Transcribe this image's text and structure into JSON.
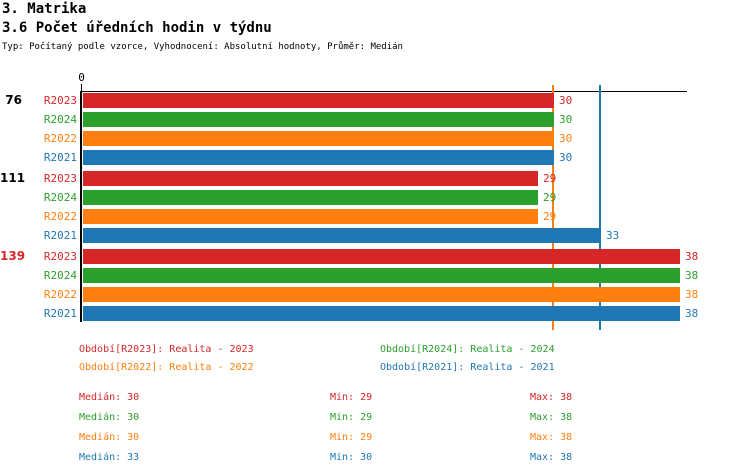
{
  "header": {
    "title": "3. Matrika",
    "subtitle": "3.6 Počet úředních hodin v týdnu",
    "meta": "Typ: Počítaný podle vzorce, Vyhodnocení: Absolutní hodnoty, Průměr: Medián"
  },
  "colors": {
    "r2023": "#d62728",
    "r2024": "#2ca02c",
    "r2022": "#ff7f0e",
    "r2021": "#1f77b4",
    "axis": "#000000",
    "highlight_group_label": "#d62728"
  },
  "chart_data": {
    "type": "bar",
    "orientation": "horizontal",
    "title": "3.6 Počet úředních hodin v týdnu",
    "x_origin_label": "0",
    "xlim": [
      0,
      38.5
    ],
    "grid": false,
    "series": [
      "R2023",
      "R2024",
      "R2022",
      "R2021"
    ],
    "series_colors": [
      "#d62728",
      "#2ca02c",
      "#ff7f0e",
      "#1f77b4"
    ],
    "groups": [
      {
        "label": "76",
        "label_color": "#000000",
        "values": [
          30,
          30,
          30,
          30
        ]
      },
      {
        "label": "111",
        "label_color": "#000000",
        "values": [
          29,
          29,
          29,
          33
        ]
      },
      {
        "label": "139",
        "label_color": "#d62728",
        "values": [
          38,
          38,
          38,
          38
        ]
      }
    ],
    "median_lines": [
      {
        "value": 30,
        "color": "#ff7f0e"
      },
      {
        "value": 33,
        "color": "#1f77b4"
      }
    ],
    "stats": [
      {
        "series": "R2023",
        "median": 30,
        "min": 29,
        "max": 38
      },
      {
        "series": "R2024",
        "median": 30,
        "min": 29,
        "max": 38
      },
      {
        "series": "R2022",
        "median": 30,
        "min": 29,
        "max": 38
      },
      {
        "series": "R2021",
        "median": 33,
        "min": 30,
        "max": 38
      }
    ]
  },
  "legend": {
    "items": [
      {
        "text": "Období[R2023]: Realita - 2023",
        "color": "#d62728"
      },
      {
        "text": "Období[R2024]: Realita - 2024",
        "color": "#2ca02c"
      },
      {
        "text": "Období[R2022]: Realita - 2022",
        "color": "#ff7f0e"
      },
      {
        "text": "Období[R2021]: Realita - 2021",
        "color": "#1f77b4"
      }
    ]
  },
  "stats": {
    "rows": [
      {
        "series": "R2023",
        "color": "#d62728",
        "cells": [
          "Medián: 30",
          "Min: 29",
          "Max: 38"
        ]
      },
      {
        "series": "R2024",
        "color": "#2ca02c",
        "cells": [
          "Medián: 30",
          "Min: 29",
          "Max: 38"
        ]
      },
      {
        "series": "R2022",
        "color": "#ff7f0e",
        "cells": [
          "Medián: 30",
          "Min: 29",
          "Max: 38"
        ]
      },
      {
        "series": "R2021",
        "color": "#1f77b4",
        "cells": [
          "Medián: 33",
          "Min: 30",
          "Max: 38"
        ]
      }
    ]
  }
}
